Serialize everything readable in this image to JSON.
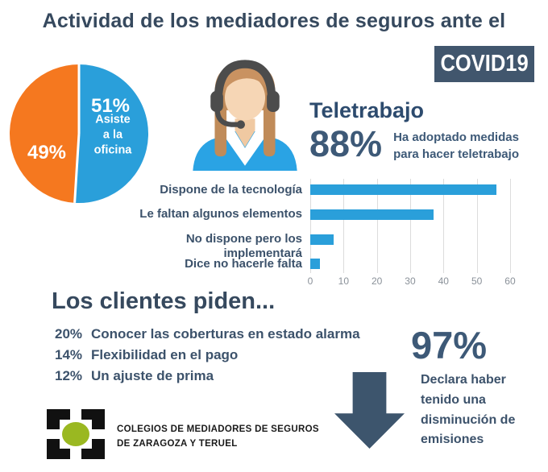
{
  "title": "Actividad de los mediadores de seguros ante el",
  "badge": "COVID19",
  "colors": {
    "blue": "#2a9fda",
    "orange": "#f5781f",
    "navy": "#36495e",
    "slate": "#3d5977",
    "badge_bg": "#41566d",
    "arrow": "#3d556d",
    "grid": "#dcdcdc",
    "tick_text": "#8a9199",
    "logo_green": "#9ab821"
  },
  "chart_data": [
    {
      "type": "pie",
      "name": "asistencia-oficina",
      "slices": [
        {
          "pct_label": "51%",
          "label": "Asiste a la\noficina",
          "value": 51,
          "color": "#2a9fda"
        },
        {
          "pct_label": "49%",
          "label": "",
          "value": 49,
          "color": "#f5781f"
        }
      ],
      "legend_position": "inside",
      "labels_color": "#ffffff"
    },
    {
      "type": "bar",
      "name": "teletrabajo-medidas",
      "orientation": "horizontal",
      "categories": [
        "Dispone de la tecnología",
        "Le faltan algunos elementos",
        "No dispone pero los implementará",
        "Dice no hacerle falta"
      ],
      "values": [
        56,
        37,
        7,
        3
      ],
      "xticks": [
        0,
        10,
        20,
        30,
        40,
        50,
        60
      ],
      "xlim": [
        0,
        64
      ],
      "grid": true,
      "bar_color": "#2a9fda"
    }
  ],
  "teletrabajo": {
    "heading": "Teletrabajo",
    "stat": "88%",
    "caption": "Ha adoptado medidas\npara hacer teletrabajo"
  },
  "clientes": {
    "heading": "Los clientes piden...",
    "items": [
      {
        "pct": "20%",
        "label": "Conocer las coberturas en estado alarma"
      },
      {
        "pct": "14%",
        "label": "Flexibilidad en el pago"
      },
      {
        "pct": "12%",
        "label": "Un ajuste de prima"
      }
    ]
  },
  "emisiones": {
    "stat": "97%",
    "caption": "Declara haber\ntenido una\ndisminución de\nemisiones"
  },
  "logo": {
    "line1": "COLEGIOS DE MEDIADORES DE SEGUROS",
    "line2": "DE ZARAGOZA Y TERUEL"
  }
}
